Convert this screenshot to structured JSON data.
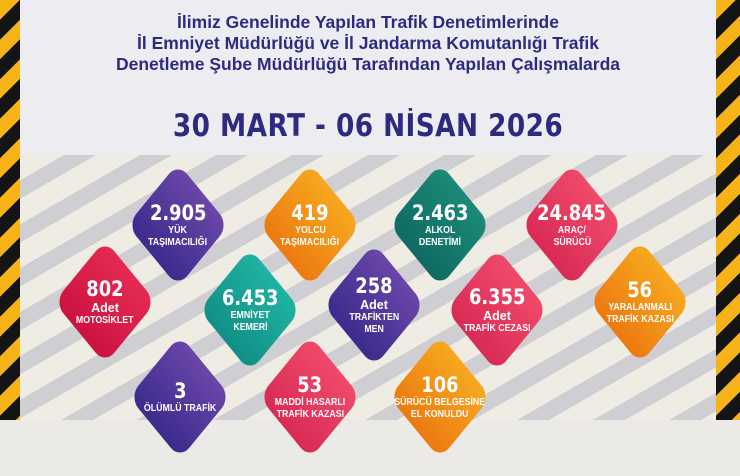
{
  "header": {
    "title_lines": [
      "İlimiz Genelinde Yapılan Trafik Denetimlerinde",
      "İl Emniyet Müdürlüğü ve İl Jandarma Komutanlığı Trafik",
      "Denetleme Şube Müdürlüğü Tarafından Yapılan Çalışmalarda"
    ],
    "date_range": "30 MART - 06 NİSAN 2026"
  },
  "colors": {
    "title": "#2e2a80",
    "hazard_yellow": "#f5b318",
    "hazard_black": "#141414"
  },
  "stats": [
    {
      "value": "2.905",
      "prefix": "",
      "label": [
        "YÜK",
        "TAŞIMACILIĞI"
      ],
      "color": "purple"
    },
    {
      "value": "419",
      "prefix": "",
      "label": [
        "YOLCU",
        "TAŞIMACILIĞI"
      ],
      "color": "orange"
    },
    {
      "value": "2.463",
      "prefix": "",
      "label": [
        "ALKOL",
        "DENETİMİ"
      ],
      "color": "teal"
    },
    {
      "value": "24.845",
      "prefix": "",
      "label": [
        "ARAÇ/",
        "SÜRÜCÜ"
      ],
      "color": "pink"
    },
    {
      "value": "802",
      "prefix": "Adet",
      "label": [
        "MOTOSİKLET"
      ],
      "color": "crimson"
    },
    {
      "value": "6.453",
      "prefix": "",
      "label": [
        "EMNİYET",
        "KEMERİ"
      ],
      "color": "turquoise"
    },
    {
      "value": "258",
      "prefix": "Adet",
      "label": [
        "TRAFİKTEN",
        "MEN"
      ],
      "color": "purple"
    },
    {
      "value": "6.355",
      "prefix": "Adet",
      "label": [
        "TRAFİK CEZASI"
      ],
      "color": "pink"
    },
    {
      "value": "56",
      "prefix": "",
      "label": [
        "YARALANMALI",
        "TRAFİK KAZASI"
      ],
      "color": "orange"
    },
    {
      "value": "3",
      "prefix": "",
      "label": [
        "ÖLÜMLÜ TRAFİK"
      ],
      "color": "purple"
    },
    {
      "value": "53",
      "prefix": "",
      "label": [
        "MADDİ HASARLI",
        "TRAFİK KAZASI"
      ],
      "color": "pink"
    },
    {
      "value": "106",
      "prefix": "",
      "label": [
        "SÜRÜCÜ BELGESİNE",
        "EL KONULDU"
      ],
      "color": "orange"
    }
  ]
}
